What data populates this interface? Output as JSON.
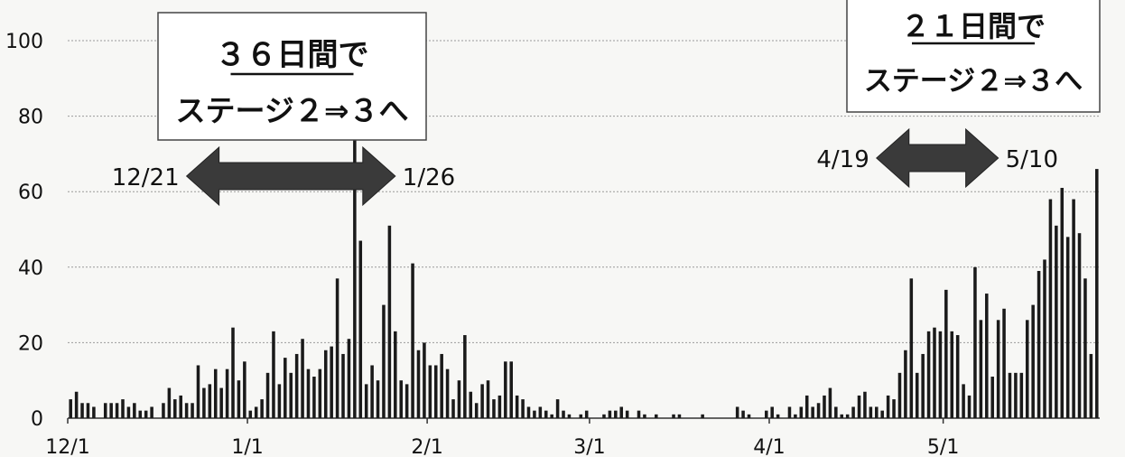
{
  "chart_data": {
    "type": "bar",
    "x_start": "12/1",
    "x_tick_labels": [
      "12/1",
      "1/1",
      "2/1",
      "3/1",
      "4/1",
      "5/1"
    ],
    "y_ticks": [
      0,
      20,
      40,
      60,
      80,
      100
    ],
    "ylim": [
      0,
      100
    ],
    "grid": true,
    "bar_color": "#1a1a1a",
    "values": [
      5,
      7,
      4,
      4,
      3,
      0,
      4,
      4,
      4,
      5,
      3,
      4,
      2,
      2,
      3,
      0,
      4,
      8,
      5,
      6,
      4,
      4,
      14,
      8,
      9,
      13,
      8,
      13,
      24,
      10,
      15,
      2,
      3,
      5,
      12,
      23,
      9,
      16,
      12,
      17,
      21,
      13,
      11,
      13,
      18,
      19,
      37,
      17,
      21,
      75,
      47,
      9,
      14,
      10,
      30,
      51,
      23,
      10,
      9,
      41,
      18,
      20,
      14,
      14,
      17,
      13,
      5,
      10,
      22,
      7,
      4,
      9,
      10,
      5,
      6,
      15,
      15,
      6,
      5,
      3,
      2,
      3,
      2,
      1,
      5,
      2,
      1,
      0,
      1,
      2,
      0,
      0,
      1,
      2,
      2,
      3,
      2,
      0,
      2,
      1,
      0,
      1,
      0,
      0,
      1,
      1,
      0,
      0,
      0,
      1,
      0,
      0,
      0,
      0,
      0,
      3,
      2,
      1,
      0,
      0,
      2,
      3,
      1,
      0,
      3,
      1,
      3,
      6,
      3,
      4,
      6,
      8,
      3,
      1,
      1,
      3,
      6,
      7,
      3,
      3,
      2,
      6,
      5,
      12,
      18,
      37,
      12,
      17,
      23,
      24,
      23,
      34,
      23,
      22,
      9,
      6,
      40,
      26,
      33,
      11,
      26,
      29,
      12,
      12,
      12,
      26,
      30,
      39,
      42,
      58,
      51,
      61,
      48,
      58,
      49,
      37,
      17,
      66
    ],
    "annotations": [
      {
        "title": "３６日間で",
        "subtitle": "ステージ２⇒３へ",
        "start_date": "12/21",
        "end_date": "1/26"
      },
      {
        "title": "２１日間で",
        "subtitle": "ステージ２⇒３へ",
        "start_date": "4/19",
        "end_date": "5/10"
      }
    ]
  }
}
